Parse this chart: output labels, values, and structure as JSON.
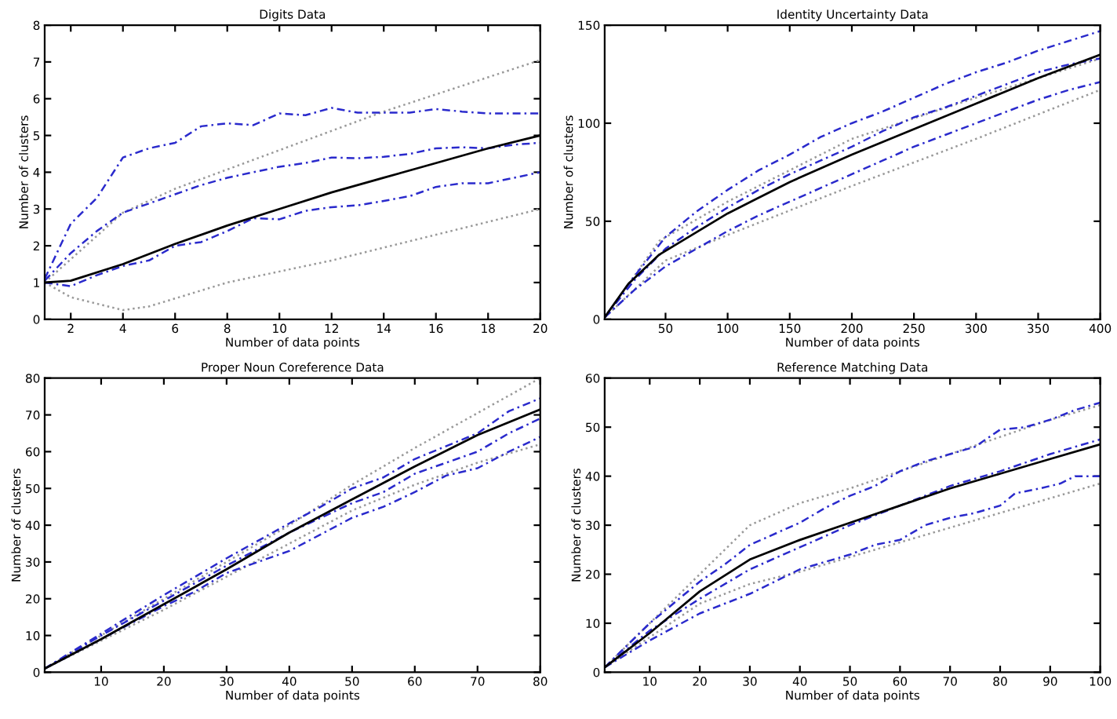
{
  "chart_data": [
    {
      "type": "line",
      "title": "Digits Data",
      "xlabel": "Number of data points",
      "ylabel": "Number of clusters",
      "xlim": [
        1,
        20
      ],
      "xticks": [
        2,
        4,
        6,
        8,
        10,
        12,
        14,
        16,
        18,
        20
      ],
      "ylim": [
        0,
        8
      ],
      "yticks": [
        0,
        1,
        2,
        3,
        4,
        5,
        6,
        7,
        8
      ],
      "grid": false,
      "legend": false,
      "series": [
        {
          "color": "#999999",
          "line_style": "dotted",
          "x": [
            1,
            4,
            6,
            10,
            14,
            20
          ],
          "values": [
            1,
            2.9,
            3.55,
            4.6,
            5.65,
            7.05
          ]
        },
        {
          "color": "#999999",
          "line_style": "dotted",
          "x": [
            1,
            2,
            4,
            5,
            8,
            12,
            16,
            20
          ],
          "values": [
            1,
            0.6,
            0.25,
            0.35,
            1.0,
            1.6,
            2.3,
            3.0
          ]
        },
        {
          "color": "#2a2acc",
          "line_style": "dashed",
          "x": [
            1,
            2,
            3,
            4,
            5,
            6,
            7,
            8,
            9,
            10,
            11,
            12,
            13,
            14,
            15,
            16,
            17,
            18,
            19,
            20
          ],
          "values": [
            1.1,
            2.6,
            3.3,
            4.4,
            4.65,
            4.8,
            5.25,
            5.33,
            5.28,
            5.6,
            5.55,
            5.75,
            5.62,
            5.62,
            5.62,
            5.72,
            5.65,
            5.6,
            5.6,
            5.6
          ]
        },
        {
          "color": "#2a2acc",
          "line_style": "dashed",
          "x": [
            1,
            2,
            3,
            4,
            5,
            6,
            7,
            8,
            9,
            10,
            11,
            12,
            13,
            14,
            15,
            16,
            17,
            18,
            19,
            20
          ],
          "values": [
            1.05,
            1.8,
            2.4,
            2.9,
            3.15,
            3.4,
            3.65,
            3.85,
            4.0,
            4.15,
            4.25,
            4.4,
            4.38,
            4.42,
            4.5,
            4.65,
            4.68,
            4.65,
            4.75,
            4.8
          ]
        },
        {
          "color": "#2a2acc",
          "line_style": "dashed",
          "x": [
            1,
            2,
            3,
            4,
            5,
            6,
            7,
            8,
            9,
            10,
            11,
            12,
            13,
            14,
            15,
            16,
            17,
            18,
            19,
            20
          ],
          "values": [
            1.0,
            0.9,
            1.2,
            1.45,
            1.6,
            2.0,
            2.1,
            2.4,
            2.75,
            2.72,
            2.95,
            3.05,
            3.1,
            3.22,
            3.35,
            3.6,
            3.7,
            3.7,
            3.85,
            4.0
          ]
        },
        {
          "color": "#000000",
          "line_style": "solid",
          "x": [
            1,
            2,
            4,
            6,
            8,
            10,
            12,
            14,
            16,
            18,
            20
          ],
          "values": [
            1,
            1.05,
            1.5,
            2.05,
            2.55,
            3.0,
            3.45,
            3.85,
            4.25,
            4.65,
            5.0
          ]
        }
      ]
    },
    {
      "type": "line",
      "title": "Identity Uncertainty Data",
      "xlabel": "Number of data points",
      "ylabel": "Number of clusters",
      "xlim": [
        1,
        400
      ],
      "xticks": [
        50,
        100,
        150,
        200,
        250,
        300,
        350,
        400
      ],
      "ylim": [
        0,
        150
      ],
      "yticks": [
        0,
        50,
        100,
        150
      ],
      "grid": false,
      "legend": false,
      "series": [
        {
          "color": "#999999",
          "line_style": "dotted",
          "x": [
            1,
            45,
            100,
            200,
            300,
            400
          ],
          "values": [
            1,
            40,
            60,
            92,
            113,
            133
          ]
        },
        {
          "color": "#999999",
          "line_style": "dotted",
          "x": [
            1,
            50,
            100,
            200,
            300,
            400
          ],
          "values": [
            1,
            30,
            43,
            68,
            92,
            117
          ]
        },
        {
          "color": "#2a2acc",
          "line_style": "dashed",
          "x": [
            1,
            25,
            50,
            75,
            100,
            125,
            150,
            175,
            200,
            225,
            250,
            275,
            300,
            325,
            350,
            375,
            400
          ],
          "values": [
            1,
            22,
            42,
            55,
            66,
            76,
            84,
            93,
            100,
            106,
            113,
            120,
            126,
            131,
            137,
            142,
            147
          ]
        },
        {
          "color": "#2a2acc",
          "line_style": "dashed",
          "x": [
            1,
            25,
            50,
            75,
            100,
            125,
            150,
            175,
            200,
            225,
            250,
            275,
            300,
            325,
            350,
            375,
            400
          ],
          "values": [
            1,
            20,
            36,
            47,
            57,
            66,
            74,
            81,
            88,
            96,
            103,
            108,
            114,
            120,
            126,
            130,
            133
          ]
        },
        {
          "color": "#2a2acc",
          "line_style": "dashed",
          "x": [
            1,
            25,
            50,
            75,
            100,
            125,
            150,
            175,
            200,
            225,
            250,
            275,
            300,
            325,
            350,
            375,
            400
          ],
          "values": [
            1,
            15,
            27,
            36,
            45,
            53,
            60,
            67,
            74,
            81,
            88,
            94,
            100,
            106,
            112,
            117,
            121
          ]
        },
        {
          "color": "#000000",
          "line_style": "solid",
          "x": [
            1,
            20,
            45,
            100,
            150,
            200,
            250,
            300,
            350,
            400
          ],
          "values": [
            1,
            18,
            33,
            54,
            70,
            84,
            97,
            110,
            123,
            135
          ]
        }
      ]
    },
    {
      "type": "line",
      "title": "Proper Noun Coreference Data",
      "xlabel": "Number of data points",
      "ylabel": "Number of clusters",
      "xlim": [
        1,
        80
      ],
      "xticks": [
        10,
        20,
        30,
        40,
        50,
        60,
        70,
        80
      ],
      "ylim": [
        0,
        80
      ],
      "yticks": [
        0,
        10,
        20,
        30,
        40,
        50,
        60,
        70,
        80
      ],
      "grid": false,
      "legend": false,
      "series": [
        {
          "color": "#999999",
          "line_style": "dotted",
          "x": [
            1,
            40,
            50,
            60,
            70,
            80
          ],
          "values": [
            1,
            40,
            51,
            61,
            70.5,
            80
          ]
        },
        {
          "color": "#999999",
          "line_style": "dotted",
          "x": [
            1,
            20,
            40,
            50,
            60,
            70,
            80
          ],
          "values": [
            1,
            17,
            35,
            44,
            51,
            57,
            62
          ]
        },
        {
          "color": "#2a2acc",
          "line_style": "dashed",
          "x": [
            1,
            10,
            20,
            30,
            40,
            45,
            50,
            55,
            60,
            65,
            70,
            75,
            80
          ],
          "values": [
            1,
            10.5,
            21,
            31,
            40.5,
            45,
            50,
            53,
            58,
            61.5,
            65,
            71,
            74.5
          ]
        },
        {
          "color": "#2a2acc",
          "line_style": "dashed",
          "x": [
            1,
            10,
            20,
            30,
            40,
            50,
            55,
            60,
            70,
            75,
            80
          ],
          "values": [
            1,
            10,
            19.5,
            29,
            38,
            46,
            49,
            54,
            60,
            65,
            69
          ]
        },
        {
          "color": "#2a2acc",
          "line_style": "dashed",
          "x": [
            1,
            10,
            20,
            25,
            30,
            40,
            50,
            55,
            60,
            65,
            70,
            75,
            80
          ],
          "values": [
            1,
            9,
            18,
            22,
            27,
            33,
            42,
            45,
            49,
            53.5,
            55.5,
            60,
            64
          ]
        },
        {
          "color": "#000000",
          "line_style": "solid",
          "x": [
            1,
            10,
            20,
            30,
            40,
            50,
            60,
            70,
            80
          ],
          "values": [
            1,
            9,
            18.5,
            28,
            38,
            47,
            56,
            64.5,
            71.5
          ]
        }
      ]
    },
    {
      "type": "line",
      "title": "Reference Matching Data",
      "xlabel": "Number of data points",
      "ylabel": "Number of clusters",
      "xlim": [
        1,
        100
      ],
      "xticks": [
        10,
        20,
        30,
        40,
        50,
        60,
        70,
        80,
        90,
        100
      ],
      "ylim": [
        0,
        60
      ],
      "yticks": [
        0,
        10,
        20,
        30,
        40,
        50,
        60
      ],
      "grid": false,
      "legend": false,
      "series": [
        {
          "color": "#999999",
          "line_style": "dotted",
          "x": [
            1,
            20,
            30,
            40,
            50,
            60,
            70,
            80,
            90,
            100
          ],
          "values": [
            1,
            20,
            30,
            34.5,
            37.5,
            41,
            44.5,
            48,
            51.5,
            54.5
          ]
        },
        {
          "color": "#999999",
          "line_style": "dotted",
          "x": [
            1,
            20,
            30,
            40,
            50,
            60,
            70,
            80,
            90,
            100
          ],
          "values": [
            1,
            14,
            18,
            20.5,
            23.5,
            26.5,
            29.5,
            32.5,
            35.5,
            38.5
          ]
        },
        {
          "color": "#2a2acc",
          "line_style": "dashed",
          "x": [
            1,
            10,
            20,
            25,
            30,
            40,
            45,
            50,
            55,
            60,
            65,
            70,
            75,
            80,
            85,
            90,
            95,
            100
          ],
          "values": [
            1,
            10,
            18.5,
            22,
            26,
            30.5,
            33.5,
            36,
            38,
            41,
            43,
            44.5,
            46,
            49.5,
            50,
            51.5,
            53.5,
            55
          ]
        },
        {
          "color": "#2a2acc",
          "line_style": "dashed",
          "x": [
            1,
            10,
            20,
            30,
            40,
            50,
            60,
            70,
            80,
            90,
            100
          ],
          "values": [
            1,
            8.5,
            15,
            21,
            25.5,
            30,
            34,
            38,
            41,
            44.5,
            47.5
          ]
        },
        {
          "color": "#2a2acc",
          "line_style": "dashed",
          "x": [
            1,
            10,
            20,
            25,
            30,
            35,
            40,
            50,
            55,
            60,
            65,
            70,
            75,
            80,
            83,
            88,
            92,
            95,
            100
          ],
          "values": [
            1,
            6.5,
            12,
            14,
            16,
            18.5,
            21,
            24,
            26,
            27,
            30,
            31.5,
            32.5,
            34,
            36.5,
            37.5,
            38.5,
            40,
            40
          ]
        },
        {
          "color": "#000000",
          "line_style": "solid",
          "x": [
            1,
            10,
            20,
            30,
            40,
            50,
            60,
            70,
            80,
            90,
            100
          ],
          "values": [
            1,
            8,
            16.5,
            23,
            27,
            30.5,
            34,
            37.5,
            40.5,
            43.5,
            46.5
          ]
        }
      ]
    }
  ]
}
